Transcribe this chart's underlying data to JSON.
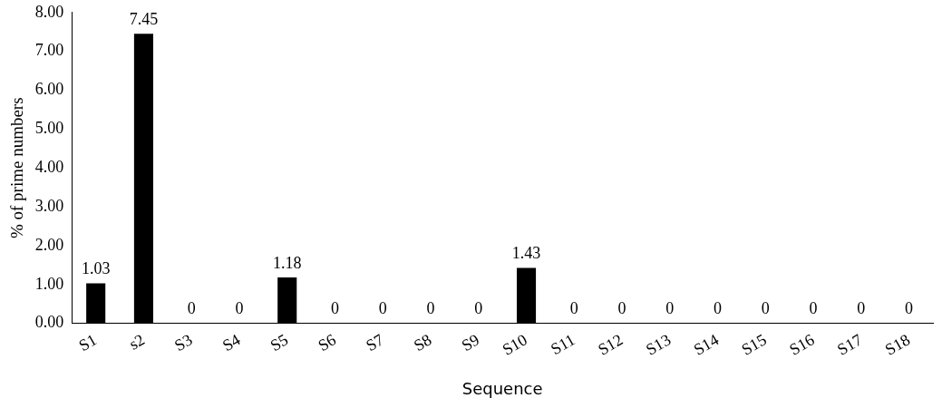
{
  "chart_data": {
    "type": "bar",
    "xlabel": "Sequence",
    "ylabel": "% of prime numbers",
    "categories": [
      "S1",
      "s2",
      "S3",
      "S4",
      "S5",
      "S6",
      "S7",
      "S8",
      "S9",
      "S10",
      "S11",
      "S12",
      "S13",
      "S14",
      "S15",
      "S16",
      "S17",
      "S18"
    ],
    "values": [
      1.03,
      7.45,
      0,
      0,
      1.18,
      0,
      0,
      0,
      0,
      1.43,
      0,
      0,
      0,
      0,
      0,
      0,
      0,
      0
    ],
    "color": "#000000",
    "ylim": [
      0,
      8
    ],
    "yticks": [
      {
        "value": 0,
        "label": "0.00"
      },
      {
        "value": 1,
        "label": "1.00"
      },
      {
        "value": 2,
        "label": "2.00"
      },
      {
        "value": 3,
        "label": "3.00"
      },
      {
        "value": 4,
        "label": "4.00"
      },
      {
        "value": 5,
        "label": "5.00"
      },
      {
        "value": 6,
        "label": "6.00"
      },
      {
        "value": 7,
        "label": "7.00"
      },
      {
        "value": 8,
        "label": "8.00"
      }
    ],
    "grid": false,
    "legend": false,
    "data_labels": true
  }
}
